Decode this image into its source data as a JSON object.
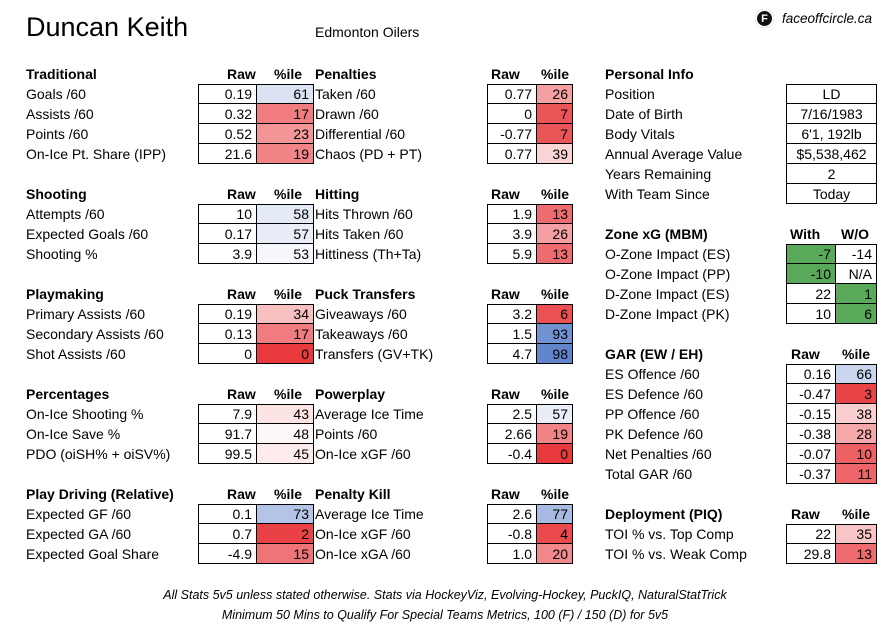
{
  "header": {
    "player": "Duncan Keith",
    "team": "Edmonton Oilers",
    "site": "faceoffcircle.ca",
    "logo_glyph": "F"
  },
  "col_raw": "Raw",
  "col_pct": "%ile",
  "left": [
    {
      "title": "Traditional",
      "rows": [
        [
          "Goals /60",
          "0.19",
          "61"
        ],
        [
          "Assists /60",
          "0.32",
          "17"
        ],
        [
          "Points /60",
          "0.52",
          "23"
        ],
        [
          "On-Ice Pt. Share (IPP)",
          "21.6",
          "19"
        ]
      ]
    },
    {
      "title": "Shooting",
      "rows": [
        [
          "Attempts /60",
          "10",
          "58"
        ],
        [
          "Expected Goals /60",
          "0.17",
          "57"
        ],
        [
          "Shooting %",
          "3.9",
          "53"
        ]
      ]
    },
    {
      "title": "Playmaking",
      "rows": [
        [
          "Primary Assists /60",
          "0.19",
          "34"
        ],
        [
          "Secondary Assists /60",
          "0.13",
          "17"
        ],
        [
          "Shot Assists /60",
          "0",
          "0"
        ]
      ]
    },
    {
      "title": "Percentages",
      "rows": [
        [
          "On-Ice Shooting %",
          "7.9",
          "43"
        ],
        [
          "On-Ice Save %",
          "91.7",
          "48"
        ],
        [
          "PDO (oiSH% + oiSV%)",
          "99.5",
          "45"
        ]
      ]
    },
    {
      "title": "Play Driving (Relative)",
      "rows": [
        [
          "Expected GF /60",
          "0.1",
          "73"
        ],
        [
          "Expected GA /60",
          "0.7",
          "2"
        ],
        [
          "Expected Goal Share",
          "-4.9",
          "15"
        ]
      ]
    }
  ],
  "mid": [
    {
      "title": "Penalties",
      "rows": [
        [
          "Taken /60",
          "0.77",
          "26"
        ],
        [
          "Drawn /60",
          "0",
          "7"
        ],
        [
          "Differential /60",
          "-0.77",
          "7"
        ],
        [
          "Chaos (PD + PT)",
          "0.77",
          "39"
        ]
      ]
    },
    {
      "title": "Hitting",
      "rows": [
        [
          "Hits Thrown /60",
          "1.9",
          "13"
        ],
        [
          "Hits Taken /60",
          "3.9",
          "26"
        ],
        [
          "Hittiness (Th+Ta)",
          "5.9",
          "13"
        ]
      ]
    },
    {
      "title": "Puck Transfers",
      "rows": [
        [
          "Giveaways /60",
          "3.2",
          "6"
        ],
        [
          "Takeaways /60",
          "1.5",
          "93"
        ],
        [
          "Transfers (GV+TK)",
          "4.7",
          "98"
        ]
      ]
    },
    {
      "title": "Powerplay",
      "rows": [
        [
          "Average Ice Time",
          "2.5",
          "57"
        ],
        [
          "Points /60",
          "2.66",
          "19"
        ],
        [
          "On-Ice xGF /60",
          "-0.4",
          "0"
        ]
      ]
    },
    {
      "title": "Penalty Kill",
      "rows": [
        [
          "Average Ice Time",
          "2.6",
          "77"
        ],
        [
          "On-Ice xGF /60",
          "-0.8",
          "4"
        ],
        [
          "On-Ice xGA /60",
          "1.0",
          "20"
        ]
      ]
    }
  ],
  "personal": {
    "title": "Personal Info",
    "rows": [
      [
        "Position",
        "LD"
      ],
      [
        "Date of Birth",
        "7/16/1983"
      ],
      [
        "Body Vitals",
        "6'1, 192lb"
      ],
      [
        "Annual Average Value",
        "$5,538,462"
      ],
      [
        "Years Remaining",
        "2"
      ],
      [
        "With Team Since",
        "Today"
      ]
    ]
  },
  "zone": {
    "title": "Zone xG (MBM)",
    "col_with": "With",
    "col_wo": "W/O",
    "rows": [
      [
        "O-Zone Impact (ES)",
        "-7",
        "-14"
      ],
      [
        "O-Zone Impact (PP)",
        "-10",
        "N/A"
      ],
      [
        "D-Zone Impact (ES)",
        "22",
        "1"
      ],
      [
        "D-Zone Impact (PK)",
        "10",
        "6"
      ]
    ]
  },
  "gar": {
    "title": "GAR (EW / EH)",
    "rows": [
      [
        "ES Offence /60",
        "0.16",
        "66"
      ],
      [
        "ES Defence /60",
        "-0.47",
        "3"
      ],
      [
        "PP Offence /60",
        "-0.15",
        "38"
      ],
      [
        "PK Defence /60",
        "-0.38",
        "28"
      ],
      [
        "Net Penalties /60",
        "-0.07",
        "10"
      ],
      [
        "Total GAR /60",
        "-0.37",
        "11"
      ]
    ]
  },
  "deploy": {
    "title": "Deployment (PIQ)",
    "rows": [
      [
        "TOI % vs. Top Comp",
        "22",
        "35"
      ],
      [
        "TOI % vs. Weak Comp",
        "29.8",
        "13"
      ]
    ]
  },
  "footer": {
    "line1": "All Stats 5v5 unless stated otherwise. Stats via HockeyViz, Evolving-Hockey, PuckIQ, NaturalStatTrick",
    "line2": "Minimum 50 Mins to Qualify For Special Teams Metrics, 100 (F) / 150 (D) for 5v5"
  },
  "colors": {
    "red": "#e8393d",
    "blue": "#5a7fc9",
    "green": "#5aa85a",
    "neutral": "#ffffff"
  }
}
